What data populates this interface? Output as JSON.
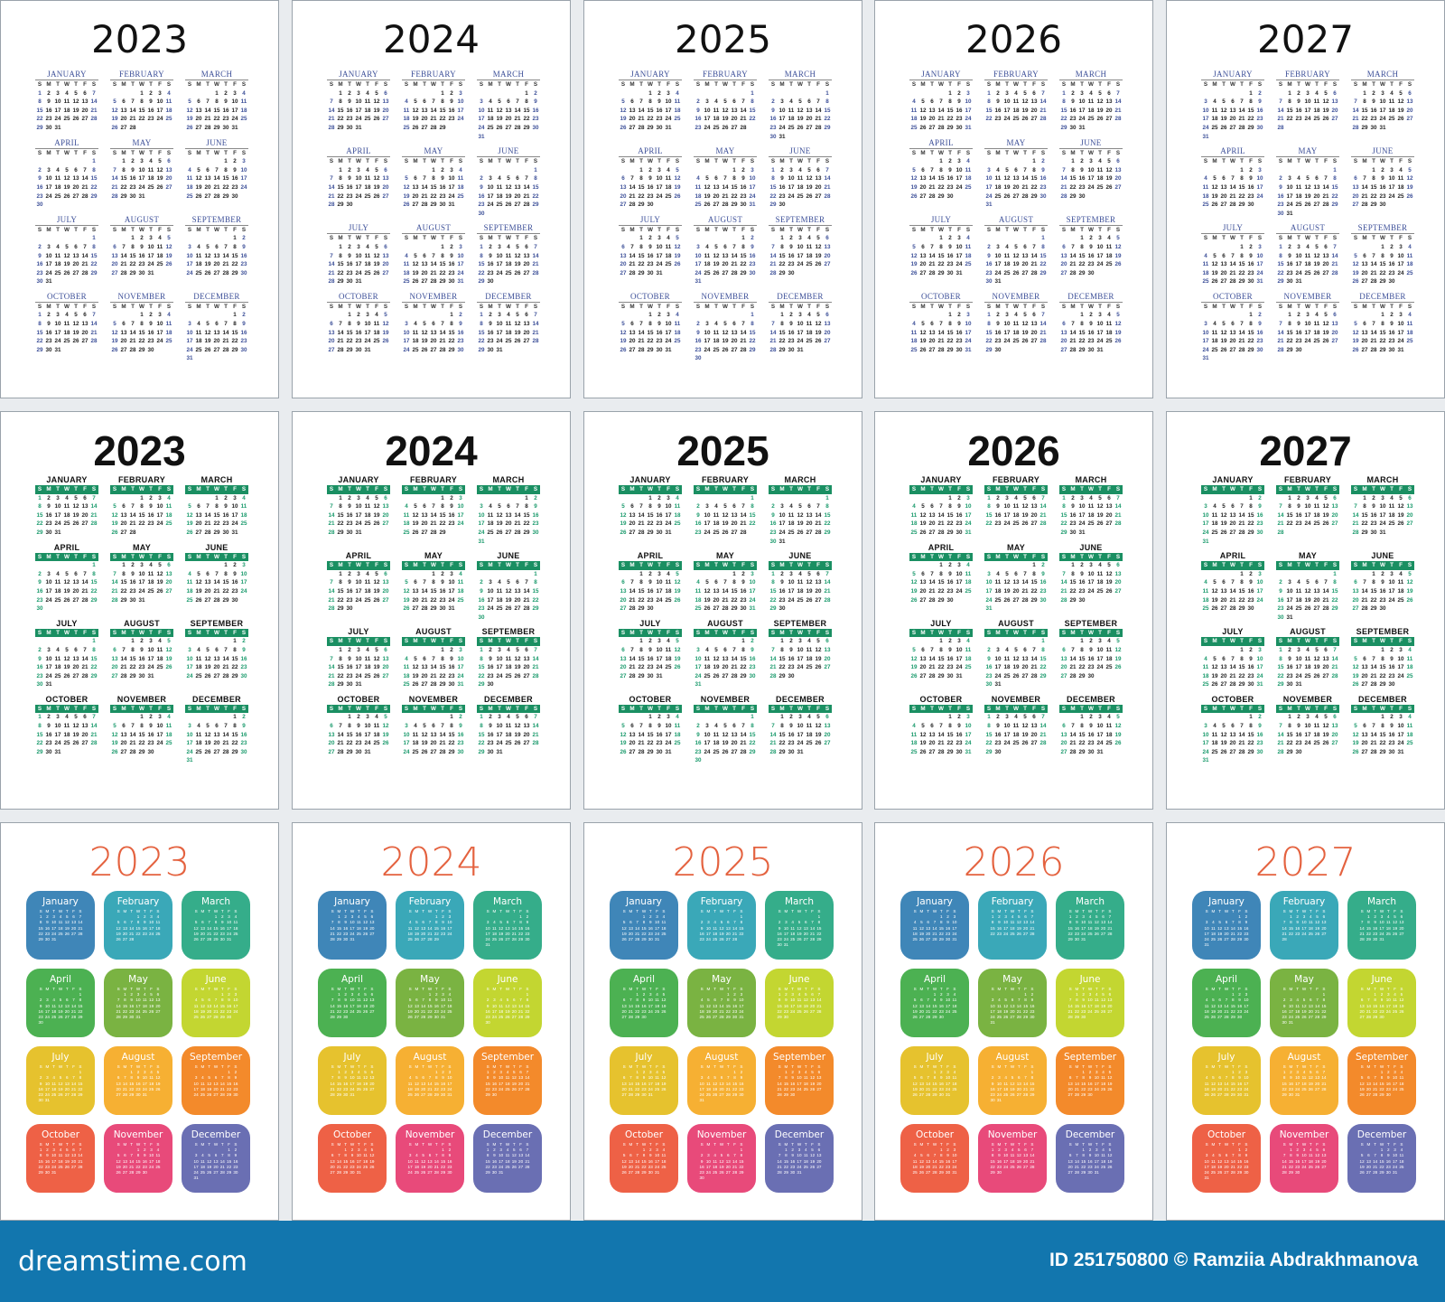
{
  "years": [
    "2023",
    "2024",
    "2025",
    "2026",
    "2027"
  ],
  "styles": [
    {
      "id": "classic",
      "month_names": [
        "JANUARY",
        "FEBRUARY",
        "MARCH",
        "APRIL",
        "MAY",
        "JUNE",
        "JULY",
        "AUGUST",
        "SEPTEMBER",
        "OCTOBER",
        "NOVEMBER",
        "DECEMBER"
      ],
      "accent": "#3c4f98"
    },
    {
      "id": "green-header",
      "month_names": [
        "JANUARY",
        "FEBRUARY",
        "MARCH",
        "APRIL",
        "MAY",
        "JUNE",
        "JULY",
        "AUGUST",
        "SEPTEMBER",
        "OCTOBER",
        "NOVEMBER",
        "DECEMBER"
      ],
      "accent": "#1a8f62"
    },
    {
      "id": "colorful-tiles",
      "month_names": [
        "January",
        "February",
        "March",
        "April",
        "May",
        "June",
        "July",
        "August",
        "September",
        "October",
        "November",
        "December"
      ],
      "accent": "#e4623f"
    }
  ],
  "weekdays": [
    "S",
    "M",
    "T",
    "W",
    "T",
    "F",
    "S"
  ],
  "tile_colors": [
    "#3f86b8",
    "#3aa8b8",
    "#35ad8a",
    "#4cb152",
    "#7ab342",
    "#c3d631",
    "#e6c22e",
    "#f6b033",
    "#f38a2b",
    "#ee6146",
    "#e84a7a",
    "#6a6fb3"
  ],
  "footer": {
    "logo": "dreamstime.com",
    "credit": "ID 251750800 © Ramziia Abdrakhmanova"
  }
}
